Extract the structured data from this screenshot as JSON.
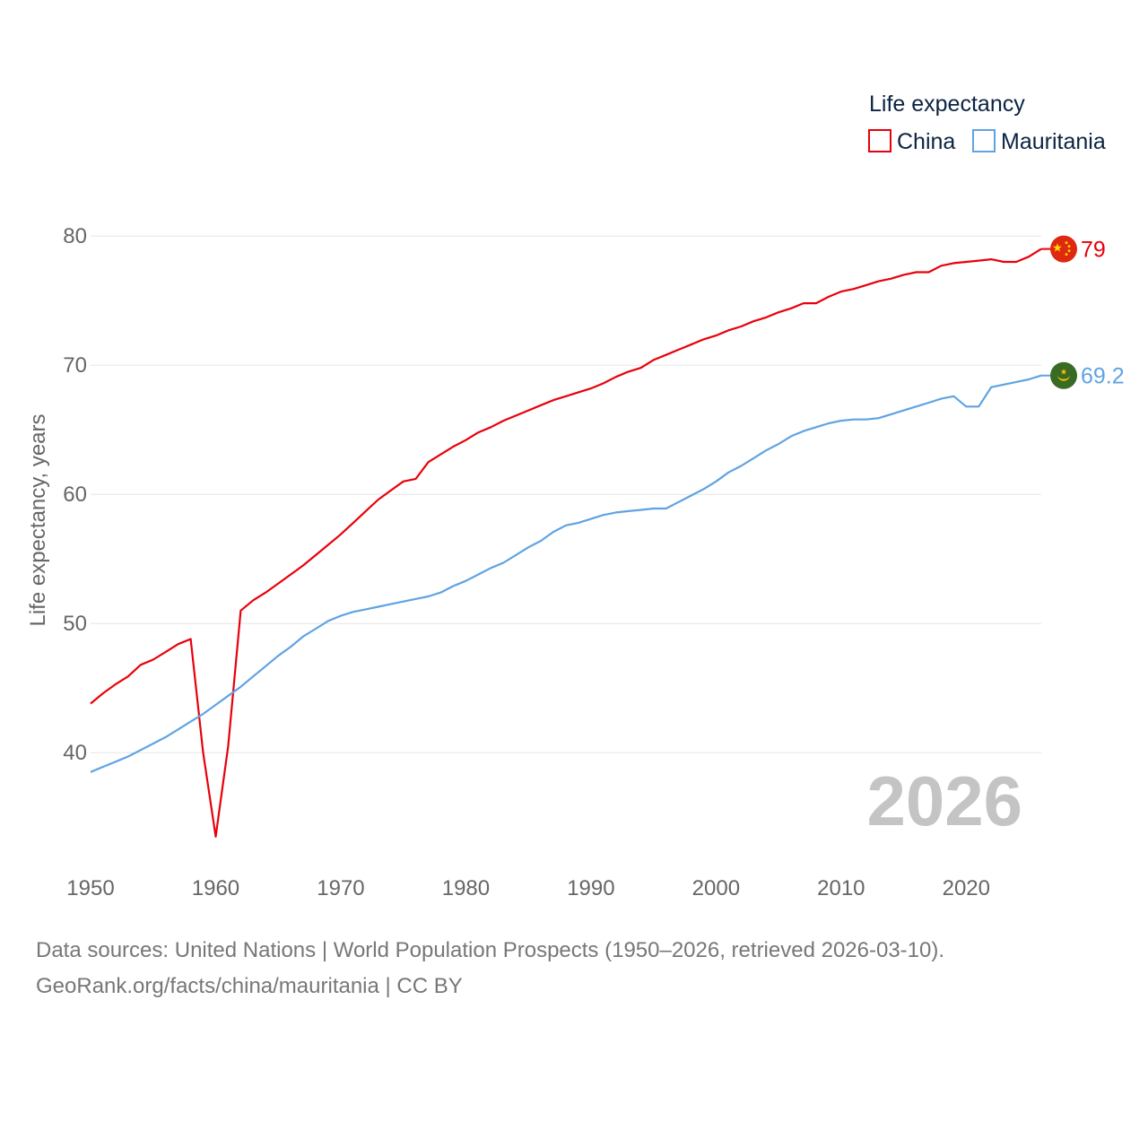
{
  "chart_data": {
    "type": "line",
    "ylabel": "Life expectancy, years",
    "xlim": [
      1950,
      2026
    ],
    "ylim": [
      33,
      83
    ],
    "x_ticks": [
      1950,
      1960,
      1970,
      1980,
      1990,
      2000,
      2010,
      2020
    ],
    "y_ticks": [
      40,
      50,
      60,
      70,
      80
    ],
    "legend": {
      "title": "Life expectancy",
      "position": "top-right"
    },
    "current_year": "2026",
    "x": [
      1950,
      1951,
      1952,
      1953,
      1954,
      1955,
      1956,
      1957,
      1958,
      1959,
      1960,
      1961,
      1962,
      1963,
      1964,
      1965,
      1966,
      1967,
      1968,
      1969,
      1970,
      1971,
      1972,
      1973,
      1974,
      1975,
      1976,
      1977,
      1978,
      1979,
      1980,
      1981,
      1982,
      1983,
      1984,
      1985,
      1986,
      1987,
      1988,
      1989,
      1990,
      1991,
      1992,
      1993,
      1994,
      1995,
      1996,
      1997,
      1998,
      1999,
      2000,
      2001,
      2002,
      2003,
      2004,
      2005,
      2006,
      2007,
      2008,
      2009,
      2010,
      2011,
      2012,
      2013,
      2014,
      2015,
      2016,
      2017,
      2018,
      2019,
      2020,
      2021,
      2022,
      2023,
      2024,
      2025,
      2026
    ],
    "series": [
      {
        "name": "China",
        "color": "#e8000b",
        "end_label": "79",
        "flag_icon": "china-flag-icon",
        "values": [
          43.8,
          44.6,
          45.3,
          45.9,
          46.8,
          47.2,
          47.8,
          48.4,
          48.8,
          40.0,
          33.5,
          40.5,
          51.0,
          51.8,
          52.4,
          53.1,
          53.8,
          54.5,
          55.3,
          56.1,
          56.9,
          57.8,
          58.7,
          59.6,
          60.3,
          61.0,
          61.2,
          62.5,
          63.1,
          63.7,
          64.2,
          64.8,
          65.2,
          65.7,
          66.1,
          66.5,
          66.9,
          67.3,
          67.6,
          67.9,
          68.2,
          68.6,
          69.1,
          69.5,
          69.8,
          70.4,
          70.8,
          71.2,
          71.6,
          72.0,
          72.3,
          72.7,
          73.0,
          73.4,
          73.7,
          74.1,
          74.4,
          74.8,
          74.8,
          75.3,
          75.7,
          75.9,
          76.2,
          76.5,
          76.7,
          77.0,
          77.2,
          77.2,
          77.7,
          77.9,
          78.0,
          78.1,
          78.2,
          78.0,
          78.0,
          78.4,
          79.0
        ]
      },
      {
        "name": "Mauritania",
        "color": "#5fa3e3",
        "end_label": "69.2",
        "flag_icon": "mauritania-flag-icon",
        "values": [
          38.5,
          38.9,
          39.3,
          39.7,
          40.2,
          40.7,
          41.2,
          41.8,
          42.4,
          43.0,
          43.7,
          44.4,
          45.1,
          45.9,
          46.7,
          47.5,
          48.2,
          49.0,
          49.6,
          50.2,
          50.6,
          50.9,
          51.1,
          51.3,
          51.5,
          51.7,
          51.9,
          52.1,
          52.4,
          52.9,
          53.3,
          53.8,
          54.3,
          54.7,
          55.3,
          55.9,
          56.4,
          57.1,
          57.6,
          57.8,
          58.1,
          58.4,
          58.6,
          58.7,
          58.8,
          58.9,
          58.9,
          59.4,
          59.9,
          60.4,
          61.0,
          61.7,
          62.2,
          62.8,
          63.4,
          63.9,
          64.5,
          64.9,
          65.2,
          65.5,
          65.7,
          65.8,
          65.8,
          65.9,
          66.2,
          66.5,
          66.8,
          67.1,
          67.4,
          67.6,
          66.8,
          66.8,
          68.3,
          68.5,
          68.7,
          68.9,
          69.2
        ]
      }
    ]
  },
  "footer": {
    "line1": "Data sources: United Nations | World Population Prospects (1950–2026, retrieved 2026-03-10).",
    "line2": "GeoRank.org/facts/china/mauritania | CC BY"
  }
}
